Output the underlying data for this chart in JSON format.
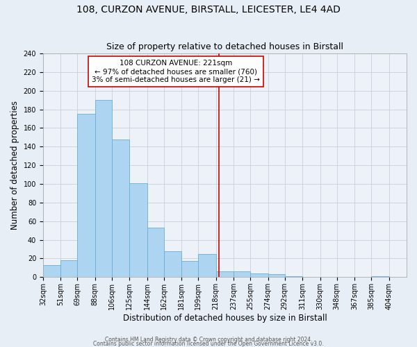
{
  "title1": "108, CURZON AVENUE, BIRSTALL, LEICESTER, LE4 4AD",
  "title2": "Size of property relative to detached houses in Birstall",
  "xlabel": "Distribution of detached houses by size in Birstall",
  "ylabel": "Number of detached properties",
  "footer1": "Contains HM Land Registry data © Crown copyright and database right 2024.",
  "footer2": "Contains public sector information licensed under the Open Government Licence v3.0.",
  "bin_labels": [
    "32sqm",
    "51sqm",
    "69sqm",
    "88sqm",
    "106sqm",
    "125sqm",
    "144sqm",
    "162sqm",
    "181sqm",
    "199sqm",
    "218sqm",
    "237sqm",
    "255sqm",
    "274sqm",
    "292sqm",
    "311sqm",
    "330sqm",
    "348sqm",
    "367sqm",
    "385sqm",
    "404sqm"
  ],
  "bin_edges": [
    32,
    51,
    69,
    88,
    106,
    125,
    144,
    162,
    181,
    199,
    218,
    237,
    255,
    274,
    292,
    311,
    330,
    348,
    367,
    385,
    404
  ],
  "bar_heights": [
    13,
    18,
    175,
    190,
    148,
    101,
    53,
    28,
    17,
    25,
    6,
    6,
    4,
    3,
    1,
    0,
    0,
    0,
    0,
    1,
    0
  ],
  "bar_color": "#add4f0",
  "bar_edge_color": "#6aaed6",
  "vline_x": 221,
  "vline_color": "#cc0000",
  "annotation_title": "108 CURZON AVENUE: 221sqm",
  "annotation_line1": "← 97% of detached houses are smaller (760)",
  "annotation_line2": "3% of semi-detached houses are larger (21) →",
  "annotation_box_facecolor": "#ffffff",
  "annotation_box_edgecolor": "#cc0000",
  "ylim": [
    0,
    240
  ],
  "yticks": [
    0,
    20,
    40,
    60,
    80,
    100,
    120,
    140,
    160,
    180,
    200,
    220,
    240
  ],
  "bg_color": "#e8eef5",
  "plot_bg_color": "#edf2f8",
  "grid_color": "#c8d0da",
  "title1_fontsize": 10,
  "title2_fontsize": 9,
  "xlabel_fontsize": 8.5,
  "ylabel_fontsize": 8.5,
  "tick_fontsize": 7,
  "annotation_fontsize": 7.5,
  "footer_fontsize": 5.5
}
